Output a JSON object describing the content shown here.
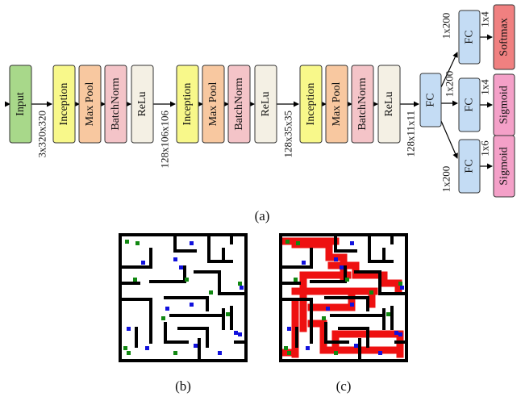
{
  "figure": {
    "caption_a": "(a)",
    "caption_b": "(b)",
    "caption_c": "(c)"
  },
  "network": {
    "blocks": {
      "input": "Input",
      "inception1": "Inception",
      "maxpool1": "Max Pool",
      "batchnorm1": "BatchNorm",
      "relu1": "ReLu",
      "inception2": "Inception",
      "maxpool2": "Max Pool",
      "batchnorm2": "BatchNorm",
      "relu2": "ReLu",
      "inception3": "Inception",
      "maxpool3": "Max Pool",
      "batchnorm3": "BatchNorm",
      "relu3": "ReLu",
      "fc_main": "FC",
      "fc_top": "FC",
      "fc_mid": "FC",
      "fc_bot": "FC",
      "softmax": "Softmax",
      "sigmoid_mid": "Sigmoid",
      "sigmoid_bot": "Sigmoid"
    },
    "dims": {
      "after_input": "3x320x320",
      "after_stage1": "128x106x106",
      "after_stage2": "128x35x35",
      "after_stage3": "128x11x11",
      "fc_top_in": "1x200",
      "fc_mid_in": "1x200",
      "fc_bot_in": "1x200",
      "softmax_in": "1x4",
      "sigmoid_mid_in": "1x4",
      "sigmoid_bot_in": "1x6"
    },
    "colors": {
      "input": "#a8d88a",
      "inception": "#f8f88a",
      "maxpool": "#f8c8a0",
      "batchnorm": "#f4c4c8",
      "relu": "#f4f0e4",
      "fc": "#c4dcf4",
      "softmax": "#f08080",
      "sigmoid": "#f4a0c8"
    }
  },
  "maps": {
    "wall_color": "#000000",
    "path_color": "#ee1111",
    "blue_marker_color": "#1111dd",
    "green_marker_color": "#118811"
  }
}
